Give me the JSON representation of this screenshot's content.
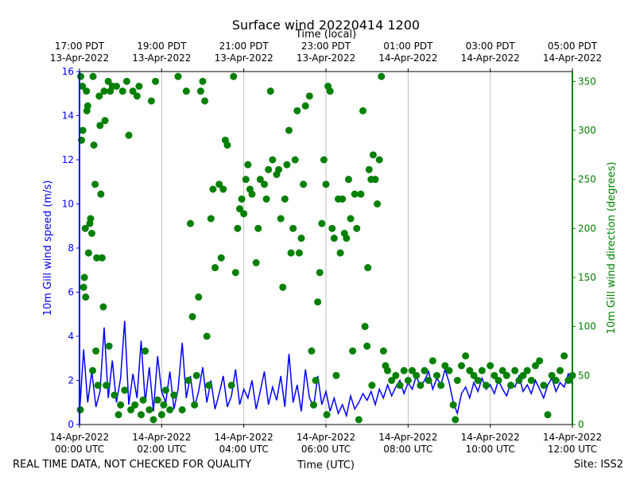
{
  "chart_data": {
    "type": "line-scatter",
    "title": "Surface wind 20220414 1200",
    "xlabel": "Time (UTC)",
    "x2label": "Time (local)",
    "ylabel": "10m Gill wind speed (m/s)",
    "y2label": "10m Gill wind direction (degrees)",
    "footer_left": "REAL TIME DATA, NOT CHECKED FOR QUALITY",
    "footer_right": "Site: ISS2",
    "xlim": [
      0,
      12
    ],
    "xticks": [
      {
        "value": 0,
        "label": "14-Apr-2022\n00:00 UTC"
      },
      {
        "value": 2,
        "label": "14-Apr-2022\n02:00 UTC"
      },
      {
        "value": 4,
        "label": "14-Apr-2022\n04:00 UTC"
      },
      {
        "value": 6,
        "label": "14-Apr-2022\n06:00 UTC"
      },
      {
        "value": 8,
        "label": "14-Apr-2022\n08:00 UTC"
      },
      {
        "value": 10,
        "label": "14-Apr-2022\n10:00 UTC"
      },
      {
        "value": 12,
        "label": "14-Apr-2022\n12:00 UTC"
      }
    ],
    "x2ticks": [
      {
        "value": 0,
        "label": "17:00 PDT\n13-Apr-2022"
      },
      {
        "value": 2,
        "label": "19:00 PDT\n13-Apr-2022"
      },
      {
        "value": 4,
        "label": "21:00 PDT\n13-Apr-2022"
      },
      {
        "value": 6,
        "label": "23:00 PDT\n13-Apr-2022"
      },
      {
        "value": 8,
        "label": "01:00 PDT\n14-Apr-2022"
      },
      {
        "value": 10,
        "label": "03:00 PDT\n14-Apr-2022"
      },
      {
        "value": 12,
        "label": "05:00 PDT\n14-Apr-2022"
      }
    ],
    "ylim": [
      0,
      16
    ],
    "yticks": [
      0,
      2,
      4,
      6,
      8,
      10,
      12,
      14,
      16
    ],
    "y2lim": [
      0,
      360
    ],
    "y2ticks": [
      0,
      50,
      100,
      150,
      200,
      250,
      300,
      350
    ],
    "grid": "x",
    "ycolor": "#0000ff",
    "y2color": "#008000",
    "series": [
      {
        "type": "line",
        "color": "#0000ff",
        "x": [
          0,
          0.1,
          0.2,
          0.3,
          0.4,
          0.5,
          0.6,
          0.7,
          0.8,
          0.9,
          1.0,
          1.1,
          1.2,
          1.3,
          1.4,
          1.5,
          1.6,
          1.7,
          1.8,
          1.9,
          2.0,
          2.1,
          2.2,
          2.3,
          2.4,
          2.5,
          2.6,
          2.7,
          2.8,
          2.9,
          3.0,
          3.1,
          3.2,
          3.3,
          3.4,
          3.5,
          3.6,
          3.7,
          3.8,
          3.9,
          4.0,
          4.1,
          4.2,
          4.3,
          4.4,
          4.5,
          4.6,
          4.7,
          4.8,
          4.9,
          5.0,
          5.1,
          5.2,
          5.3,
          5.4,
          5.5,
          5.6,
          5.7,
          5.8,
          5.9,
          6.0,
          6.1,
          6.2,
          6.3,
          6.4,
          6.5,
          6.6,
          6.7,
          6.8,
          6.9,
          7.0,
          7.1,
          7.2,
          7.3,
          7.4,
          7.5,
          7.6,
          7.7,
          7.8,
          7.9,
          8.0,
          8.1,
          8.2,
          8.3,
          8.4,
          8.5,
          8.6,
          8.7,
          8.8,
          8.9,
          9.0,
          9.1,
          9.2,
          9.3,
          9.4,
          9.5,
          9.6,
          9.7,
          9.8,
          9.9,
          10.0,
          10.1,
          10.2,
          10.3,
          10.4,
          10.5,
          10.6,
          10.7,
          10.8,
          10.9,
          11.0,
          11.1,
          11.2,
          11.3,
          11.4,
          11.5,
          11.6,
          11.7,
          11.8,
          11.9,
          12.0
        ],
        "values": [
          0.5,
          3.4,
          1.0,
          2.4,
          0.8,
          1.5,
          4.4,
          1.2,
          2.9,
          1.0,
          2.1,
          4.7,
          0.9,
          2.3,
          1.2,
          3.8,
          1.0,
          2.6,
          0.6,
          3.1,
          1.5,
          1.0,
          2.4,
          0.7,
          1.6,
          3.7,
          1.2,
          2.2,
          0.8,
          1.5,
          2.6,
          1.0,
          2.0,
          0.7,
          1.4,
          2.2,
          0.8,
          1.3,
          2.5,
          0.9,
          1.6,
          1.2,
          2.0,
          0.7,
          1.5,
          2.4,
          0.9,
          1.7,
          1.1,
          2.2,
          0.8,
          3.2,
          1.0,
          1.8,
          0.6,
          2.5,
          1.2,
          0.8,
          2.2,
          0.9,
          1.5,
          0.6,
          1.2,
          0.5,
          0.9,
          0.4,
          1.3,
          0.7,
          1.0,
          1.4,
          1.1,
          1.5,
          0.9,
          1.6,
          1.2,
          1.8,
          1.3,
          1.7,
          2.0,
          1.4,
          1.9,
          1.6,
          2.2,
          1.7,
          2.0,
          2.4,
          1.6,
          2.1,
          1.8,
          2.5,
          1.9,
          1.0,
          0.5,
          1.4,
          1.7,
          1.2,
          1.9,
          1.5,
          2.1,
          1.6,
          1.8,
          1.4,
          2.0,
          1.6,
          1.3,
          1.9,
          1.7,
          2.2,
          1.5,
          1.8,
          1.4,
          2.0,
          1.6,
          1.2,
          1.8,
          2.1,
          1.5,
          1.9,
          1.7,
          2.3,
          1.8
        ]
      },
      {
        "type": "scatter",
        "color": "#008000",
        "axis": "y2",
        "x": [
          0.02,
          0.03,
          0.05,
          0.07,
          0.08,
          0.1,
          0.12,
          0.14,
          0.15,
          0.17,
          0.18,
          0.2,
          0.22,
          0.25,
          0.27,
          0.3,
          0.32,
          0.33,
          0.35,
          0.38,
          0.4,
          0.42,
          0.45,
          0.48,
          0.5,
          0.52,
          0.55,
          0.58,
          0.6,
          0.62,
          0.65,
          0.7,
          0.72,
          0.75,
          0.8,
          0.85,
          0.9,
          0.95,
          1.0,
          1.05,
          1.1,
          1.15,
          1.2,
          1.25,
          1.3,
          1.35,
          1.4,
          1.45,
          1.5,
          1.55,
          1.6,
          1.7,
          1.75,
          1.8,
          1.85,
          1.9,
          2.0,
          2.05,
          2.1,
          2.2,
          2.3,
          2.4,
          2.5,
          2.6,
          2.65,
          2.7,
          2.75,
          2.8,
          2.85,
          2.9,
          2.95,
          3.0,
          3.05,
          3.1,
          3.15,
          3.2,
          3.25,
          3.3,
          3.4,
          3.45,
          3.5,
          3.55,
          3.6,
          3.7,
          3.75,
          3.8,
          3.85,
          3.9,
          3.95,
          4.0,
          4.05,
          4.1,
          4.15,
          4.2,
          4.3,
          4.35,
          4.4,
          4.5,
          4.55,
          4.6,
          4.65,
          4.7,
          4.8,
          4.85,
          4.9,
          4.95,
          5.0,
          5.05,
          5.1,
          5.15,
          5.2,
          5.25,
          5.3,
          5.35,
          5.4,
          5.45,
          5.5,
          5.6,
          5.65,
          5.7,
          5.75,
          5.8,
          5.85,
          5.9,
          5.95,
          6.0,
          6.02,
          6.05,
          6.1,
          6.15,
          6.2,
          6.25,
          6.3,
          6.35,
          6.4,
          6.45,
          6.5,
          6.55,
          6.6,
          6.65,
          6.7,
          6.75,
          6.8,
          6.85,
          6.9,
          6.95,
          7.0,
          7.02,
          7.05,
          7.1,
          7.12,
          7.15,
          7.2,
          7.25,
          7.3,
          7.35,
          7.4,
          7.45,
          7.5,
          7.6,
          7.7,
          7.8,
          7.9,
          8.0,
          8.1,
          8.2,
          8.3,
          8.4,
          8.5,
          8.6,
          8.7,
          8.8,
          8.9,
          9.0,
          9.1,
          9.15,
          9.2,
          9.3,
          9.4,
          9.5,
          9.6,
          9.7,
          9.8,
          9.9,
          10.0,
          10.1,
          10.2,
          10.3,
          10.4,
          10.5,
          10.6,
          10.7,
          10.8,
          10.9,
          11.0,
          11.1,
          11.2,
          11.3,
          11.4,
          11.5,
          11.6,
          11.7,
          11.8,
          11.9,
          12.0
        ],
        "values": [
          15,
          355,
          290,
          345,
          300,
          140,
          150,
          200,
          130,
          340,
          320,
          325,
          175,
          205,
          210,
          195,
          55,
          355,
          285,
          245,
          75,
          170,
          40,
          335,
          305,
          235,
          170,
          120,
          340,
          310,
          40,
          350,
          80,
          340,
          345,
          30,
          345,
          10,
          20,
          340,
          35,
          350,
          295,
          15,
          340,
          20,
          335,
          345,
          10,
          25,
          75,
          15,
          330,
          5,
          350,
          25,
          10,
          20,
          35,
          15,
          30,
          355,
          15,
          340,
          45,
          205,
          110,
          20,
          50,
          130,
          340,
          350,
          330,
          90,
          40,
          210,
          240,
          160,
          245,
          170,
          240,
          290,
          285,
          40,
          355,
          155,
          200,
          220,
          230,
          215,
          250,
          265,
          240,
          235,
          165,
          200,
          250,
          245,
          230,
          260,
          340,
          270,
          255,
          260,
          210,
          140,
          230,
          265,
          300,
          175,
          200,
          270,
          320,
          175,
          190,
          245,
          325,
          335,
          75,
          20,
          45,
          125,
          155,
          205,
          270,
          245,
          10,
          345,
          340,
          200,
          190,
          50,
          230,
          175,
          230,
          195,
          190,
          250,
          210,
          75,
          235,
          200,
          5,
          235,
          320,
          100,
          80,
          160,
          260,
          250,
          40,
          275,
          250,
          225,
          270,
          355,
          75,
          60,
          55,
          45,
          50,
          40,
          55,
          45,
          55,
          50,
          40,
          55,
          45,
          65,
          50,
          40,
          60,
          55,
          20,
          5,
          45,
          60,
          70,
          55,
          50,
          45,
          55,
          40,
          60,
          50,
          45,
          55,
          50,
          40,
          55,
          45,
          50,
          55,
          45,
          60,
          65,
          40,
          10,
          50,
          45,
          55,
          70,
          45,
          50
        ]
      }
    ]
  }
}
